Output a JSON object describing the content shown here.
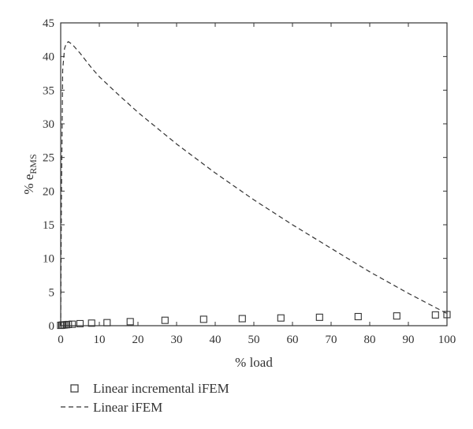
{
  "chart_data": {
    "type": "line",
    "title": "",
    "xlabel": "% load",
    "ylabel_prefix": "% e",
    "ylabel_subscript": "RMS",
    "xlim": [
      0,
      100
    ],
    "ylim": [
      0,
      45
    ],
    "xticks": [
      0,
      10,
      20,
      30,
      40,
      50,
      60,
      70,
      80,
      90,
      100
    ],
    "yticks": [
      0,
      5,
      10,
      15,
      20,
      25,
      30,
      35,
      40,
      45
    ],
    "grid": false,
    "legend_position": "bottom-left, below plot",
    "series": [
      {
        "name": "Linear incremental iFEM",
        "style": "markers",
        "marker": "open-square",
        "color": "#333333",
        "x": [
          0,
          0.3,
          0.6,
          1,
          1.5,
          2,
          3,
          5,
          8,
          12,
          18,
          27,
          37,
          47,
          57,
          67,
          77,
          87,
          97,
          100
        ],
        "y": [
          0.05,
          0.08,
          0.1,
          0.12,
          0.15,
          0.18,
          0.22,
          0.3,
          0.38,
          0.45,
          0.6,
          0.8,
          0.95,
          1.05,
          1.15,
          1.25,
          1.35,
          1.45,
          1.6,
          1.65
        ]
      },
      {
        "name": "Linear iFEM",
        "style": "dashed-line",
        "color": "#333333",
        "x": [
          0,
          0.2,
          0.5,
          1,
          1.5,
          2,
          3,
          5,
          8,
          10,
          15,
          20,
          30,
          40,
          50,
          60,
          70,
          80,
          90,
          100
        ],
        "y": [
          0,
          20,
          38,
          41.2,
          42,
          42.2,
          41.8,
          40.5,
          38.3,
          37,
          34.3,
          31.7,
          27,
          22.7,
          18.7,
          15,
          11.5,
          8,
          4.8,
          1.8
        ]
      }
    ]
  }
}
